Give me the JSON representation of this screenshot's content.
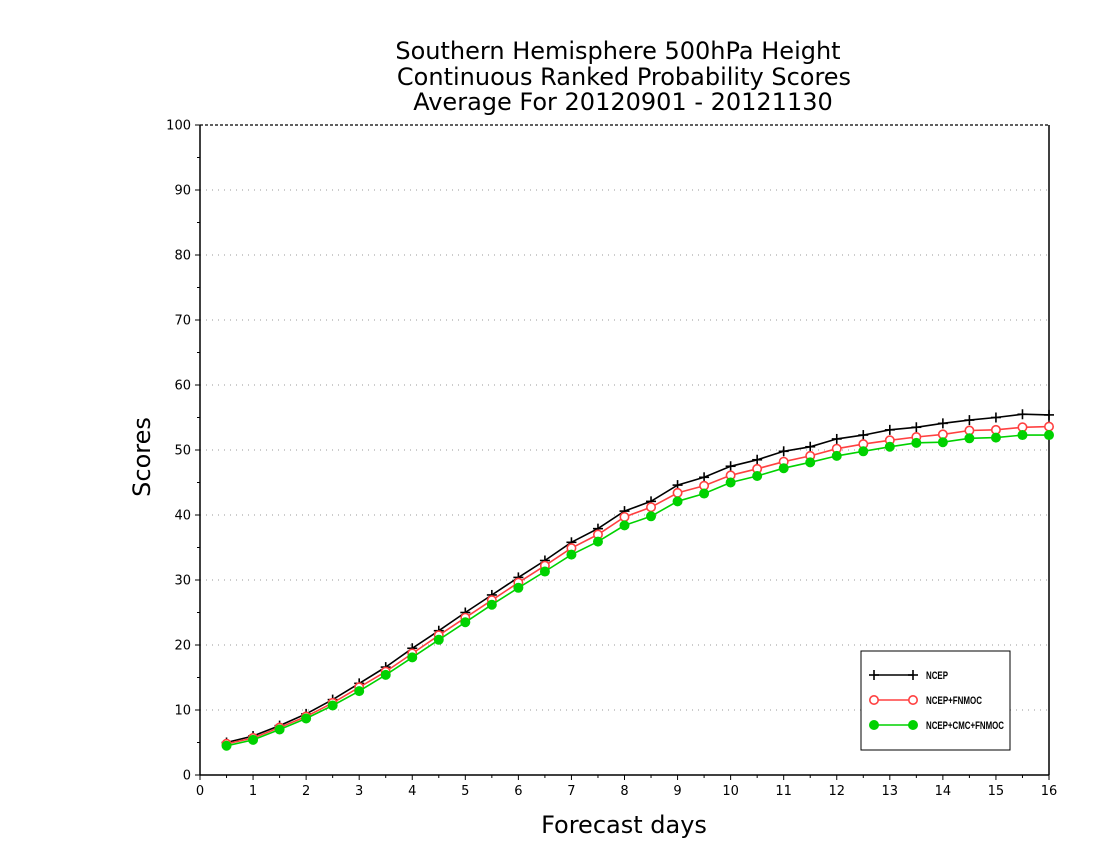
{
  "chart_data": {
    "type": "line",
    "title": [
      "Southern Hemisphere 500hPa Height",
      "Continuous Ranked Probability Scores",
      "Average For 20120901 - 20121130"
    ],
    "xlabel": "Forecast days",
    "ylabel": "Scores",
    "xlim": [
      0,
      16
    ],
    "ylim": [
      0,
      100
    ],
    "xticks": [
      0,
      1,
      2,
      3,
      4,
      5,
      6,
      7,
      8,
      9,
      10,
      11,
      12,
      13,
      14,
      15,
      16
    ],
    "yticks": [
      0,
      10,
      20,
      30,
      40,
      50,
      60,
      70,
      80,
      90,
      100
    ],
    "grid": "horizontal dotted",
    "legend_position": "bottom-right",
    "x": [
      0.5,
      1,
      1.5,
      2,
      2.5,
      3,
      3.5,
      4,
      4.5,
      5,
      5.5,
      6,
      6.5,
      7,
      7.5,
      8,
      8.5,
      9,
      9.5,
      10,
      10.5,
      11,
      11.5,
      12,
      12.5,
      13,
      13.5,
      14,
      14.5,
      15,
      15.5,
      16
    ],
    "series": [
      {
        "name": "NCEP",
        "color": "#000000",
        "marker": "plus",
        "values": [
          5.0,
          6.0,
          7.6,
          9.4,
          11.6,
          14.1,
          16.6,
          19.5,
          22.2,
          25.0,
          27.7,
          30.4,
          33.0,
          35.8,
          37.9,
          40.6,
          42.1,
          44.6,
          45.8,
          47.5,
          48.5,
          49.8,
          50.5,
          51.7,
          52.3,
          53.1,
          53.5,
          54.1,
          54.6,
          55.0,
          55.5,
          55.4
        ]
      },
      {
        "name": "NCEP+FNMOC",
        "color": "#ff4040",
        "marker": "open-circle",
        "values": [
          4.8,
          5.7,
          7.3,
          9.0,
          11.1,
          13.5,
          15.9,
          18.7,
          21.5,
          24.2,
          26.9,
          29.6,
          32.2,
          34.9,
          37.0,
          39.7,
          41.2,
          43.4,
          44.5,
          46.1,
          47.1,
          48.2,
          49.1,
          50.2,
          50.9,
          51.5,
          52.0,
          52.4,
          53.0,
          53.1,
          53.5,
          53.6
        ]
      },
      {
        "name": "NCEP+CMC+FNMOC",
        "color": "#00d200",
        "marker": "filled-circle",
        "values": [
          4.5,
          5.4,
          7.0,
          8.7,
          10.7,
          12.9,
          15.4,
          18.1,
          20.8,
          23.5,
          26.2,
          28.8,
          31.3,
          33.9,
          35.9,
          38.4,
          39.8,
          42.1,
          43.3,
          45.0,
          46.0,
          47.2,
          48.1,
          49.1,
          49.8,
          50.5,
          51.1,
          51.2,
          51.8,
          51.9,
          52.3,
          52.3
        ]
      }
    ]
  }
}
